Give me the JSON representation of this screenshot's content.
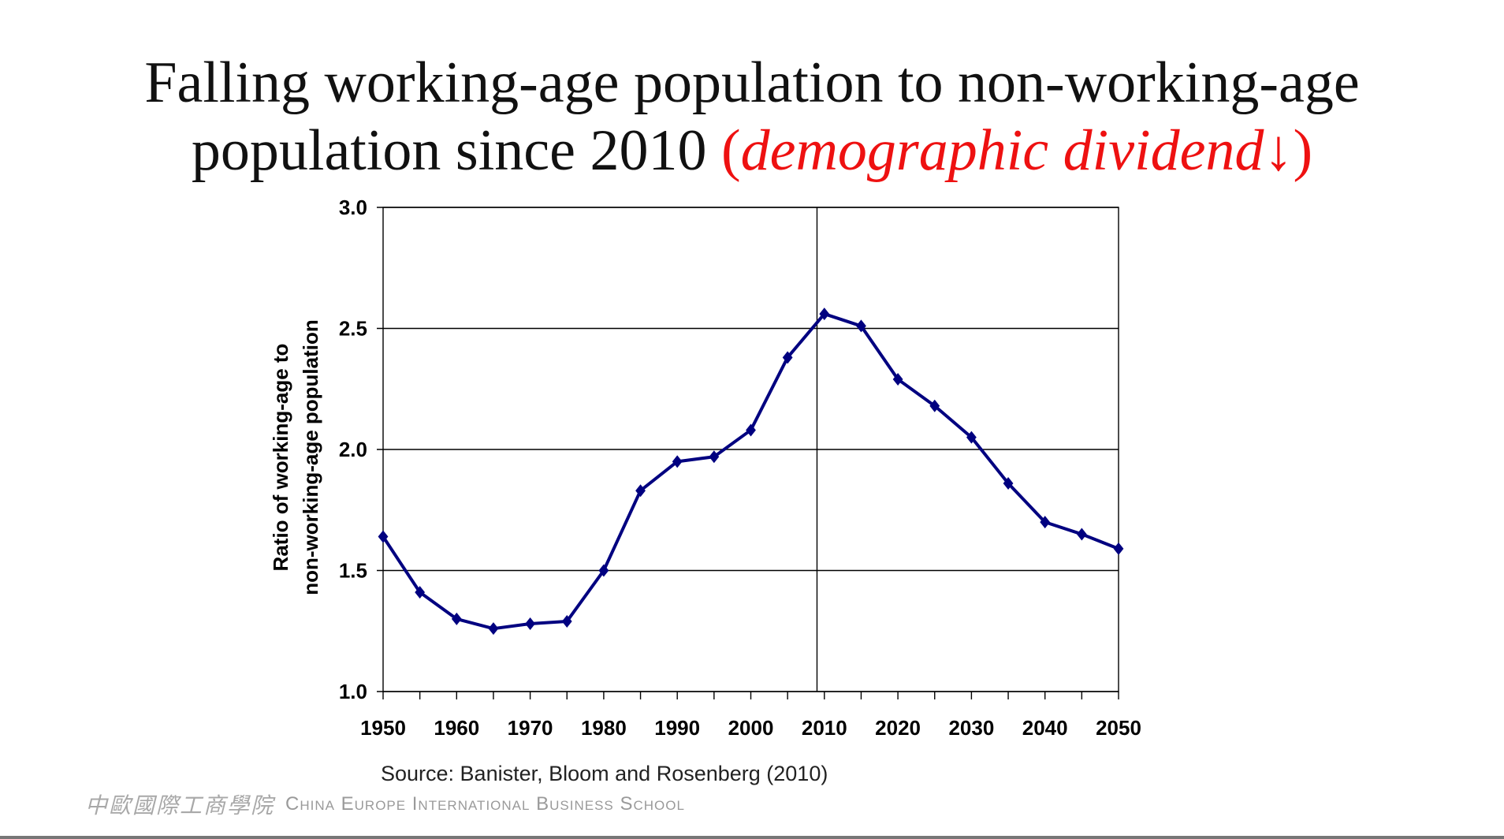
{
  "slide": {
    "title_line1": "Falling working-age population to non-working-age",
    "title_line2": "population since 2010 ",
    "title_highlight_open": "(",
    "title_highlight": "demographic dividend↓",
    "title_highlight_close": ")",
    "source": "Source: Banister, Bloom and  Rosenberg (2010)",
    "footer_cn": "中歐國際工商學院",
    "footer_en": "China Europe International Business School",
    "accent_color": "#ee1111"
  },
  "chart_data": {
    "type": "line",
    "title": "",
    "xlabel": "",
    "ylabel_line1": "Ratio of working-age to",
    "ylabel_line2": "non-working-age population",
    "xlim": [
      1950,
      2050
    ],
    "ylim": [
      1.0,
      3.0
    ],
    "xticks": [
      "1950",
      "1960",
      "1970",
      "1980",
      "1990",
      "2000",
      "2010",
      "2020",
      "2030",
      "2040",
      "2050"
    ],
    "yticks": [
      "1.0",
      "1.5",
      "2.0",
      "2.5",
      "3.0"
    ],
    "grid": "horizontal",
    "reference_line_x": 2009,
    "line_color": "#000080",
    "series": [
      {
        "name": "Ratio",
        "x": [
          1950,
          1955,
          1960,
          1965,
          1970,
          1975,
          1980,
          1985,
          1990,
          1995,
          2000,
          2005,
          2010,
          2015,
          2020,
          2025,
          2030,
          2035,
          2040,
          2045,
          2050
        ],
        "values": [
          1.64,
          1.41,
          1.3,
          1.26,
          1.28,
          1.29,
          1.5,
          1.83,
          1.95,
          1.97,
          2.08,
          2.38,
          2.56,
          2.51,
          2.29,
          2.18,
          2.05,
          1.86,
          1.7,
          1.65,
          1.59
        ]
      }
    ]
  }
}
